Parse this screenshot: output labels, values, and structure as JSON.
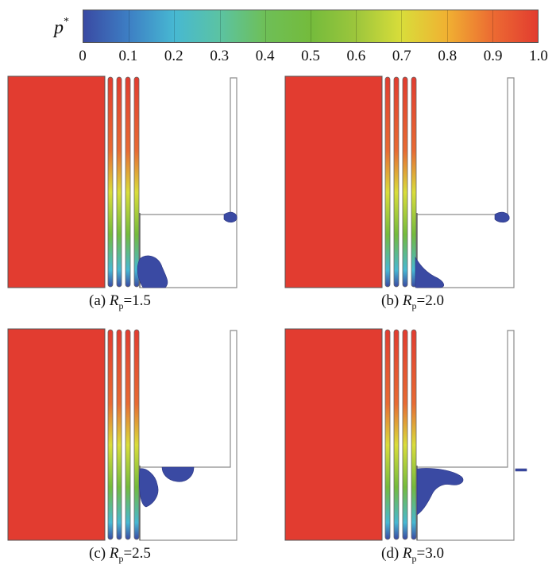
{
  "colorbar": {
    "symbol": "p",
    "superscript": "*",
    "ticks": [
      "0",
      "0.1",
      "0.2",
      "0.3",
      "0.4",
      "0.5",
      "0.6",
      "0.7",
      "0.8",
      "0.9",
      "1.0"
    ],
    "colors": [
      "#3a4aa3",
      "#3d7fc4",
      "#47b8d2",
      "#5bc3a3",
      "#6ebf57",
      "#74bb3c",
      "#9cc63c",
      "#d9dd3a",
      "#f0b132",
      "#ec6b32",
      "#e23c30"
    ]
  },
  "panels": [
    {
      "id": "a",
      "label": "(a)",
      "param": "R",
      "sub": "p",
      "value": "=1.5"
    },
    {
      "id": "b",
      "label": "(b)",
      "param": "R",
      "sub": "p",
      "value": "=2.0"
    },
    {
      "id": "c",
      "label": "(c)",
      "param": "R",
      "sub": "p",
      "value": "=2.5"
    },
    {
      "id": "d",
      "label": "(d)",
      "param": "R",
      "sub": "p",
      "value": "=3.0"
    }
  ],
  "colors": {
    "high_pressure": "#e23c30",
    "low_pressure": "#3a4aa3",
    "wall": "#8c8c8c"
  }
}
